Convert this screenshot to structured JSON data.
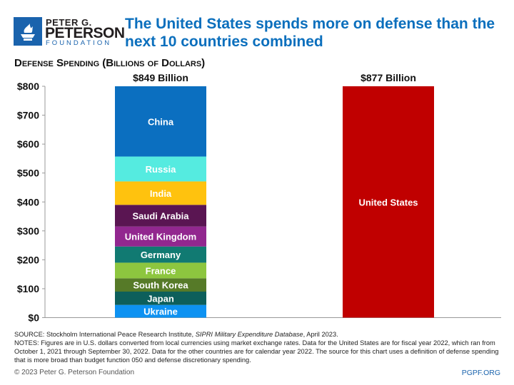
{
  "header": {
    "logo_lines": [
      "PETER G.",
      "PETERSON",
      "FOUNDATION"
    ],
    "title": "The United States spends more on defense than the next 10 countries combined"
  },
  "chart_data": {
    "type": "bar",
    "stacked": true,
    "title": "Defense Spending (Billions of Dollars)",
    "ylim": [
      0,
      800
    ],
    "yticks": [
      0,
      100,
      200,
      300,
      400,
      500,
      600,
      700,
      800
    ],
    "ytick_labels": [
      "$0",
      "$100",
      "$200",
      "$300",
      "$400",
      "$500",
      "$600",
      "$700",
      "$800"
    ],
    "grid": false,
    "bars": [
      {
        "total_label": "$849 Billion",
        "segments": [
          {
            "name": "Ukraine",
            "value": 44,
            "color": "#0d92f2"
          },
          {
            "name": "Japan",
            "value": 46,
            "color": "#0d5f5b"
          },
          {
            "name": "South Korea",
            "value": 46,
            "color": "#567a28"
          },
          {
            "name": "France",
            "value": 54,
            "color": "#8dc63f"
          },
          {
            "name": "Germany",
            "value": 56,
            "color": "#117a72"
          },
          {
            "name": "United Kingdom",
            "value": 69,
            "color": "#92278f"
          },
          {
            "name": "Saudi Arabia",
            "value": 75,
            "color": "#5a1552"
          },
          {
            "name": "India",
            "value": 81,
            "color": "#ffc20e"
          },
          {
            "name": "Russia",
            "value": 86,
            "color": "#55ebe0"
          },
          {
            "name": "China",
            "value": 292,
            "color": "#0b6fc0"
          }
        ]
      },
      {
        "total_label": "$877 Billion",
        "segments": [
          {
            "name": "United States",
            "value": 877,
            "color": "#c00000"
          }
        ]
      }
    ]
  },
  "footer": {
    "source_prefix": "SOURCE: Stockholm International Peace Research Institute, ",
    "source_italic": "SIPRI Military Expenditure Database",
    "source_suffix": ", April 2023.",
    "notes": "NOTES: Figures are in U.S. dollars converted from local currencies using market exchange rates. Data for the United States are for fiscal year 2022, which ran from October 1, 2021 through September 30, 2022. Data for the other countries are for calendar year 2022. The source for this chart uses a definition of defense spending that is more broad than budget function 050 and defense discretionary spending.",
    "copyright": "© 2023 Peter G. Peterson Foundation",
    "site": "PGPF.ORG"
  }
}
